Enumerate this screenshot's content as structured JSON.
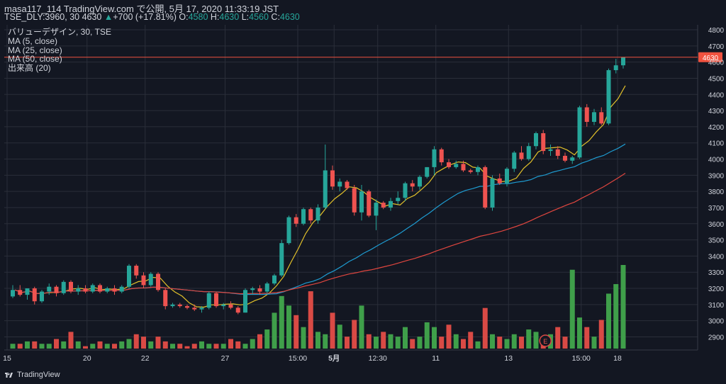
{
  "header": {
    "title": "masa117_114 TradingView.com で公開, 5月 17, 2020 11:33:19 JST"
  },
  "info": {
    "symbol": "TSE_DLY:3960, 30",
    "last": "4630",
    "change_arrow": "▲",
    "change": "+700 (+17.81%)",
    "o_label": "O:",
    "o": "4580",
    "h_label": "H:",
    "h": "4630",
    "l_label": "L:",
    "l": "4560",
    "c_label": "C:",
    "c": "4630"
  },
  "legend": {
    "main": "バリューデザイン, 30, TSE",
    "ma5": "MA (5, close)",
    "ma25": "MA (25, close)",
    "ma50": "MA (50, close)",
    "volume": "出来高 (20)"
  },
  "footer": {
    "brand": "TradingView",
    "icon": "tradingview-logo-icon"
  },
  "colors": {
    "background": "#131722",
    "grid": "#2a2e39",
    "up": "#26a69a",
    "down": "#ef5350",
    "ma5": "#e2c12a",
    "ma25": "#1e9bd0",
    "ma50": "#e0463f",
    "vol_up": "#3f9f4a",
    "vol_down": "#d94a45",
    "price_line": "#f0523f"
  },
  "chart_data": {
    "type": "candlestick",
    "interval": "30",
    "ylim": [
      2880,
      4800
    ],
    "y_ticks": [
      2900,
      3000,
      3100,
      3200,
      3300,
      3400,
      3500,
      3600,
      3700,
      3800,
      3900,
      4000,
      4100,
      4200,
      4300,
      4400,
      4500,
      4600,
      4700,
      4800
    ],
    "last_price_label": "4630",
    "x_ticks": [
      "15",
      "20",
      "22",
      "27",
      "15:00",
      "5月",
      "12:30",
      "11",
      "13",
      "15:00",
      "18"
    ],
    "x_ticks_bold": [
      "5月"
    ],
    "x_tick_index": [
      0,
      11,
      19,
      30,
      40,
      45,
      51,
      59,
      69,
      79,
      84
    ],
    "event_marker": {
      "label": "E",
      "index": 73
    },
    "candles": [
      {
        "o": 3150,
        "h": 3220,
        "l": 3140,
        "c": 3190
      },
      {
        "o": 3190,
        "h": 3220,
        "l": 3150,
        "c": 3160
      },
      {
        "o": 3160,
        "h": 3200,
        "l": 3130,
        "c": 3200
      },
      {
        "o": 3200,
        "h": 3210,
        "l": 3100,
        "c": 3120
      },
      {
        "o": 3120,
        "h": 3190,
        "l": 3110,
        "c": 3180
      },
      {
        "o": 3180,
        "h": 3230,
        "l": 3160,
        "c": 3210
      },
      {
        "o": 3210,
        "h": 3220,
        "l": 3150,
        "c": 3170
      },
      {
        "o": 3170,
        "h": 3250,
        "l": 3160,
        "c": 3240
      },
      {
        "o": 3240,
        "h": 3250,
        "l": 3170,
        "c": 3180
      },
      {
        "o": 3180,
        "h": 3220,
        "l": 3160,
        "c": 3200
      },
      {
        "o": 3200,
        "h": 3220,
        "l": 3170,
        "c": 3180
      },
      {
        "o": 3180,
        "h": 3230,
        "l": 3170,
        "c": 3220
      },
      {
        "o": 3220,
        "h": 3230,
        "l": 3170,
        "c": 3180
      },
      {
        "o": 3180,
        "h": 3210,
        "l": 3170,
        "c": 3200
      },
      {
        "o": 3200,
        "h": 3220,
        "l": 3160,
        "c": 3180
      },
      {
        "o": 3180,
        "h": 3220,
        "l": 3170,
        "c": 3210
      },
      {
        "o": 3210,
        "h": 3350,
        "l": 3200,
        "c": 3340
      },
      {
        "o": 3340,
        "h": 3350,
        "l": 3260,
        "c": 3280
      },
      {
        "o": 3280,
        "h": 3300,
        "l": 3200,
        "c": 3220
      },
      {
        "o": 3220,
        "h": 3300,
        "l": 3210,
        "c": 3290
      },
      {
        "o": 3290,
        "h": 3300,
        "l": 3180,
        "c": 3190
      },
      {
        "o": 3190,
        "h": 3200,
        "l": 3070,
        "c": 3090
      },
      {
        "o": 3090,
        "h": 3110,
        "l": 3080,
        "c": 3100
      },
      {
        "o": 3100,
        "h": 3110,
        "l": 3080,
        "c": 3090
      },
      {
        "o": 3090,
        "h": 3100,
        "l": 3070,
        "c": 3080
      },
      {
        "o": 3080,
        "h": 3100,
        "l": 3060,
        "c": 3070
      },
      {
        "o": 3070,
        "h": 3090,
        "l": 3050,
        "c": 3080
      },
      {
        "o": 3080,
        "h": 3180,
        "l": 3070,
        "c": 3170
      },
      {
        "o": 3170,
        "h": 3180,
        "l": 3080,
        "c": 3090
      },
      {
        "o": 3090,
        "h": 3110,
        "l": 3070,
        "c": 3100
      },
      {
        "o": 3100,
        "h": 3120,
        "l": 3070,
        "c": 3080
      },
      {
        "o": 3080,
        "h": 3090,
        "l": 3040,
        "c": 3050
      },
      {
        "o": 3050,
        "h": 3200,
        "l": 3050,
        "c": 3190
      },
      {
        "o": 3190,
        "h": 3210,
        "l": 3160,
        "c": 3200
      },
      {
        "o": 3200,
        "h": 3220,
        "l": 3160,
        "c": 3180
      },
      {
        "o": 3180,
        "h": 3240,
        "l": 3170,
        "c": 3230
      },
      {
        "o": 3230,
        "h": 3290,
        "l": 3220,
        "c": 3280
      },
      {
        "o": 3280,
        "h": 3500,
        "l": 3270,
        "c": 3480
      },
      {
        "o": 3480,
        "h": 3650,
        "l": 3470,
        "c": 3640
      },
      {
        "o": 3640,
        "h": 3660,
        "l": 3580,
        "c": 3600
      },
      {
        "o": 3600,
        "h": 3700,
        "l": 3590,
        "c": 3690
      },
      {
        "o": 3690,
        "h": 3700,
        "l": 3600,
        "c": 3620
      },
      {
        "o": 3620,
        "h": 3720,
        "l": 3600,
        "c": 3700
      },
      {
        "o": 3700,
        "h": 4090,
        "l": 3690,
        "c": 3930
      },
      {
        "o": 3930,
        "h": 3960,
        "l": 3810,
        "c": 3830
      },
      {
        "o": 3830,
        "h": 3880,
        "l": 3800,
        "c": 3860
      },
      {
        "o": 3860,
        "h": 3870,
        "l": 3810,
        "c": 3820
      },
      {
        "o": 3820,
        "h": 3840,
        "l": 3650,
        "c": 3670
      },
      {
        "o": 3670,
        "h": 3840,
        "l": 3620,
        "c": 3800
      },
      {
        "o": 3800,
        "h": 3810,
        "l": 3640,
        "c": 3650
      },
      {
        "o": 3650,
        "h": 3750,
        "l": 3560,
        "c": 3730
      },
      {
        "o": 3730,
        "h": 3740,
        "l": 3690,
        "c": 3700
      },
      {
        "o": 3700,
        "h": 3760,
        "l": 3680,
        "c": 3740
      },
      {
        "o": 3740,
        "h": 3800,
        "l": 3720,
        "c": 3760
      },
      {
        "o": 3760,
        "h": 3860,
        "l": 3740,
        "c": 3850
      },
      {
        "o": 3850,
        "h": 3870,
        "l": 3800,
        "c": 3830
      },
      {
        "o": 3830,
        "h": 3900,
        "l": 3810,
        "c": 3890
      },
      {
        "o": 3890,
        "h": 3950,
        "l": 3880,
        "c": 3950
      },
      {
        "o": 3950,
        "h": 4080,
        "l": 3900,
        "c": 4060
      },
      {
        "o": 4060,
        "h": 4070,
        "l": 3960,
        "c": 3980
      },
      {
        "o": 3980,
        "h": 4000,
        "l": 3940,
        "c": 3950
      },
      {
        "o": 3950,
        "h": 3990,
        "l": 3940,
        "c": 3970
      },
      {
        "o": 3970,
        "h": 3990,
        "l": 3920,
        "c": 3930
      },
      {
        "o": 3930,
        "h": 3940,
        "l": 3910,
        "c": 3920
      },
      {
        "o": 3920,
        "h": 3960,
        "l": 3900,
        "c": 3950
      },
      {
        "o": 3950,
        "h": 3960,
        "l": 3690,
        "c": 3700
      },
      {
        "o": 3700,
        "h": 3900,
        "l": 3680,
        "c": 3880
      },
      {
        "o": 3880,
        "h": 3910,
        "l": 3840,
        "c": 3850
      },
      {
        "o": 3850,
        "h": 3950,
        "l": 3830,
        "c": 3940
      },
      {
        "o": 3940,
        "h": 4050,
        "l": 3920,
        "c": 4040
      },
      {
        "o": 4040,
        "h": 4080,
        "l": 3990,
        "c": 4000
      },
      {
        "o": 4000,
        "h": 4100,
        "l": 3990,
        "c": 4080
      },
      {
        "o": 4080,
        "h": 4170,
        "l": 4060,
        "c": 4160
      },
      {
        "o": 4160,
        "h": 4180,
        "l": 4030,
        "c": 4050
      },
      {
        "o": 4050,
        "h": 4090,
        "l": 4020,
        "c": 4060
      },
      {
        "o": 4060,
        "h": 4080,
        "l": 4000,
        "c": 4020
      },
      {
        "o": 4020,
        "h": 4040,
        "l": 3980,
        "c": 3990
      },
      {
        "o": 3990,
        "h": 4020,
        "l": 3970,
        "c": 4010
      },
      {
        "o": 4010,
        "h": 4330,
        "l": 4000,
        "c": 4320
      },
      {
        "o": 4320,
        "h": 4340,
        "l": 4200,
        "c": 4230
      },
      {
        "o": 4230,
        "h": 4310,
        "l": 4210,
        "c": 4290
      },
      {
        "o": 4290,
        "h": 4320,
        "l": 4210,
        "c": 4220
      },
      {
        "o": 4220,
        "h": 4560,
        "l": 4210,
        "c": 4550
      },
      {
        "o": 4550,
        "h": 4620,
        "l": 4530,
        "c": 4580
      },
      {
        "o": 4580,
        "h": 4630,
        "l": 4560,
        "c": 4630
      }
    ],
    "volumes": [
      2,
      2,
      3,
      3,
      2,
      2,
      4,
      3,
      7,
      3,
      1,
      2,
      3,
      2,
      2,
      3,
      4,
      6,
      5,
      3,
      5,
      3,
      2,
      2,
      1,
      2,
      3,
      2,
      2,
      2,
      4,
      3,
      2,
      4,
      6,
      8,
      15,
      22,
      18,
      14,
      9,
      24,
      7,
      6,
      15,
      10,
      5,
      12,
      18,
      6,
      5,
      7,
      6,
      5,
      9,
      4,
      5,
      11,
      9,
      5,
      10,
      6,
      4,
      7,
      3,
      17,
      6,
      5,
      4,
      6,
      5,
      8,
      7,
      4,
      6,
      9,
      5,
      33,
      13,
      9,
      5,
      12,
      23,
      27,
      35
    ],
    "ma5_color": "#e2c12a",
    "ma25_color": "#1e9bd0",
    "ma50_color": "#e0463f"
  }
}
